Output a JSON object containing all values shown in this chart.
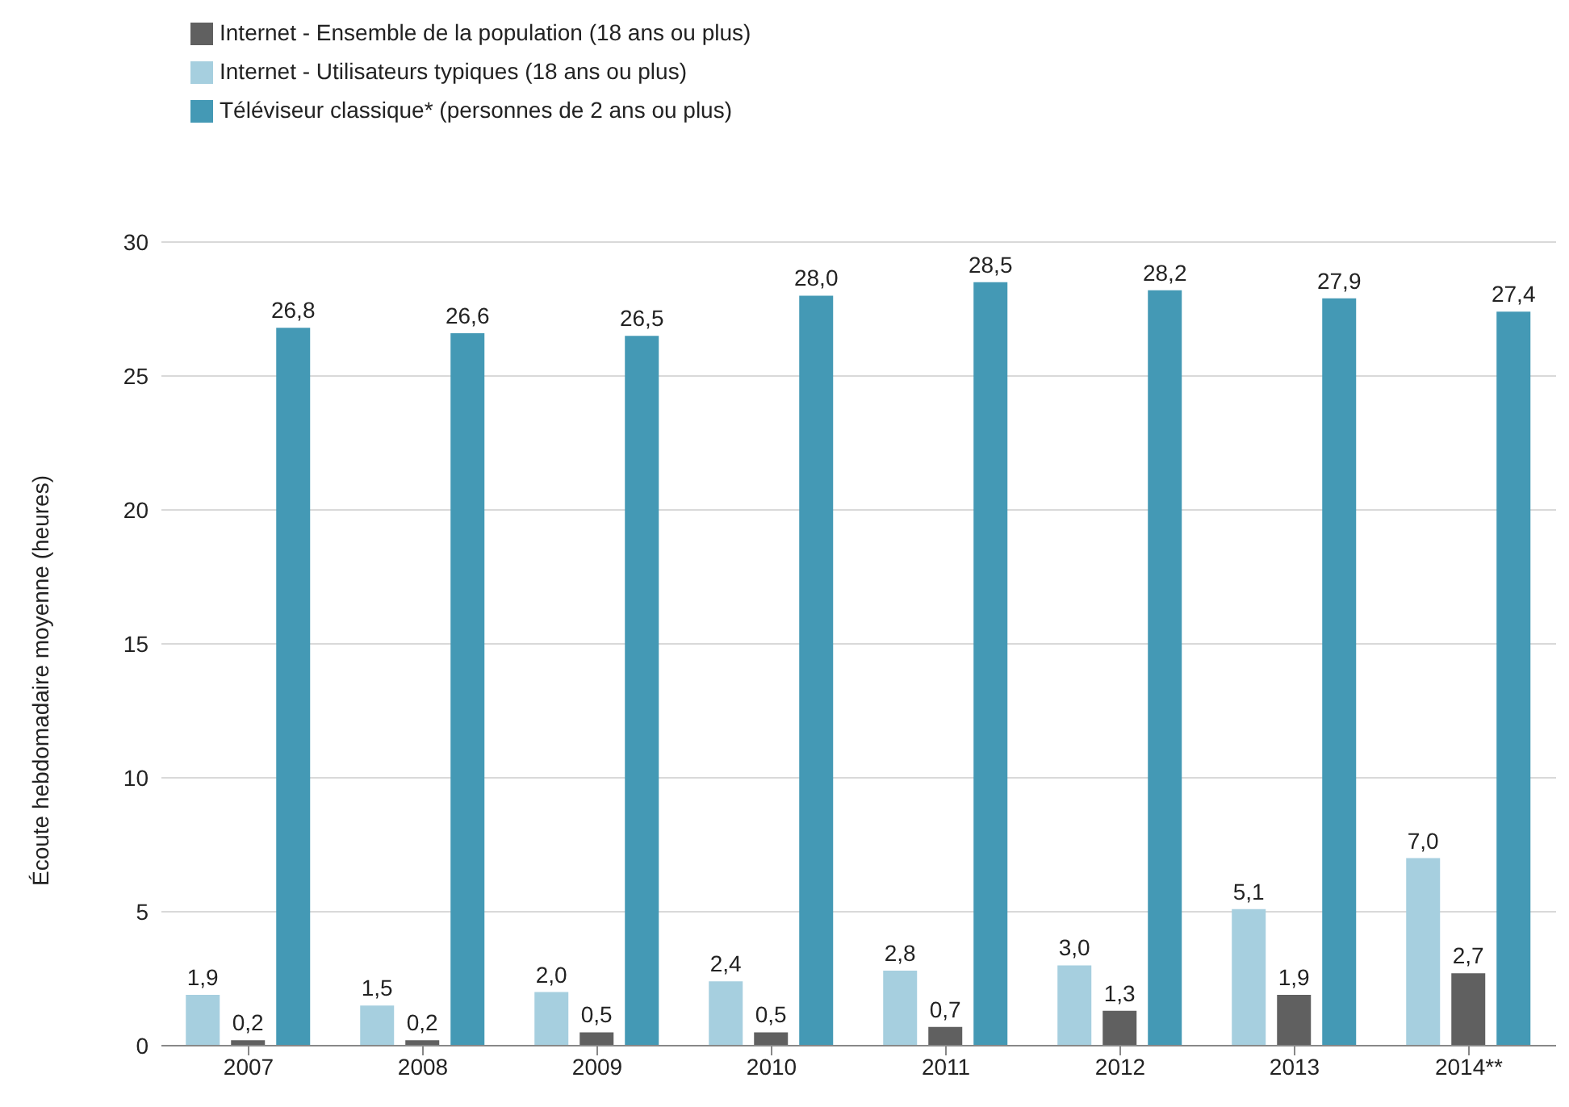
{
  "chart_data": {
    "type": "bar",
    "ylabel": "Écoute hebdomadaire moyenne (heures)",
    "categories": [
      "2007",
      "2008",
      "2009",
      "2010",
      "2011",
      "2012",
      "2013",
      "2014**"
    ],
    "series": [
      {
        "name": "Internet - Utilisateurs typiques (18 ans ou plus)",
        "color": "#a6cfdf",
        "values": [
          1.9,
          1.5,
          2.0,
          2.4,
          2.8,
          3.0,
          5.1,
          7.0
        ],
        "value_labels": [
          "1,9",
          "1,5",
          "2,0",
          "2,4",
          "2,8",
          "3,0",
          "5,1",
          "7,0"
        ]
      },
      {
        "name": "Internet - Ensemble de la population (18 ans ou plus)",
        "color": "#606060",
        "values": [
          0.2,
          0.2,
          0.5,
          0.5,
          0.7,
          1.3,
          1.9,
          2.7
        ],
        "value_labels": [
          "0,2",
          "0,2",
          "0,5",
          "0,5",
          "0,7",
          "1,3",
          "1,9",
          "2,7"
        ]
      },
      {
        "name": "Téléviseur classique* (personnes de 2 ans ou plus)",
        "color": "#4499b5",
        "values": [
          26.8,
          26.6,
          26.5,
          28.0,
          28.5,
          28.2,
          27.9,
          27.4
        ],
        "value_labels": [
          "26,8",
          "26,6",
          "26,5",
          "28,0",
          "28,5",
          "28,2",
          "27,9",
          "27,4"
        ]
      }
    ],
    "ylim": [
      0,
      30
    ],
    "yticks": [
      0,
      5,
      10,
      15,
      20,
      25,
      30
    ],
    "grid": "y",
    "legend": "top left"
  }
}
